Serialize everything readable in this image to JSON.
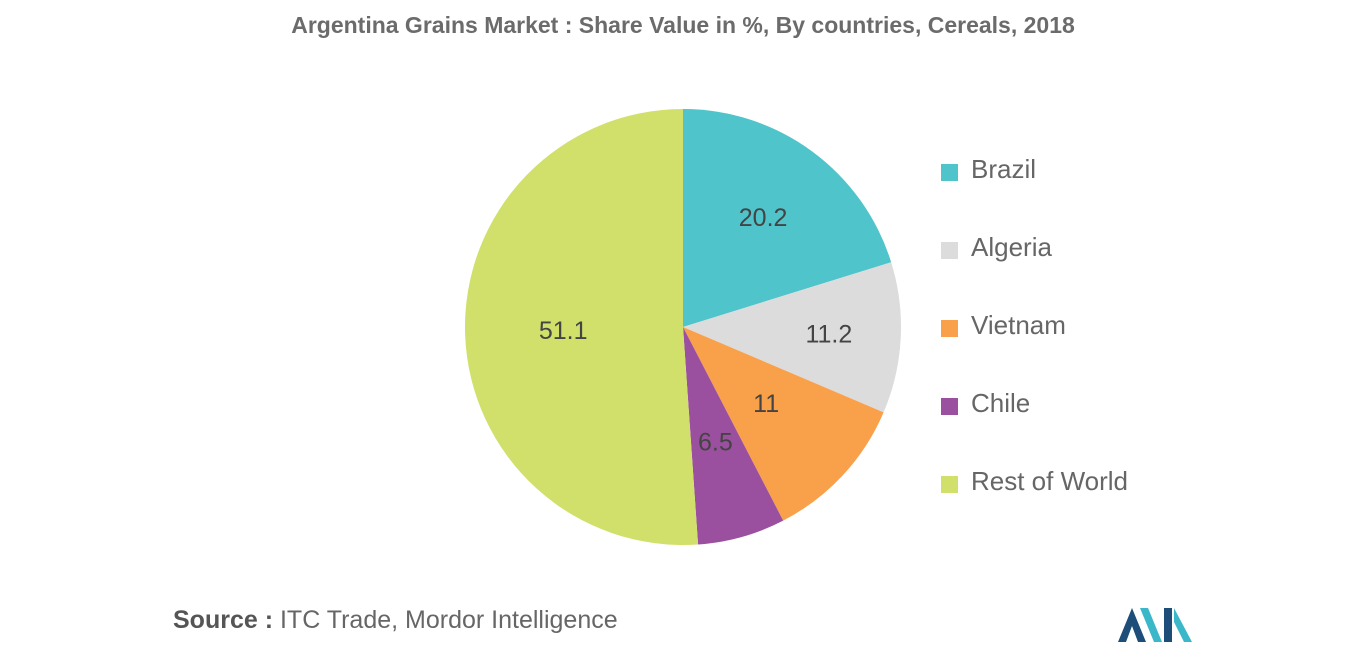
{
  "title": "Argentina Grains Market : Share Value in %, By countries, Cereals, 2018",
  "chart_data": {
    "type": "pie",
    "title": "Argentina Grains Market : Share Value in %, By countries, Cereals, 2018",
    "legend": "right",
    "slices": [
      {
        "name": "Brazil",
        "value": 20.2,
        "label": "20.2",
        "color": "#4fc4cb"
      },
      {
        "name": "Algeria",
        "value": 11.2,
        "label": "11.2",
        "color": "#dcdcdc"
      },
      {
        "name": "Vietnam",
        "value": 11,
        "label": "11",
        "color": "#f9a04a"
      },
      {
        "name": "Chile",
        "value": 6.5,
        "label": "6.5",
        "color": "#9b509f"
      },
      {
        "name": "Rest of World",
        "value": 51.1,
        "label": "51.1",
        "color": "#d1e06b"
      }
    ]
  },
  "source": {
    "prefix": "Source :",
    "text": " ITC Trade, Mordor Intelligence"
  },
  "logo": {
    "icon": "mordor-intelligence-logo-icon",
    "colors": [
      "#1d4e7a",
      "#3ab7c9"
    ]
  }
}
